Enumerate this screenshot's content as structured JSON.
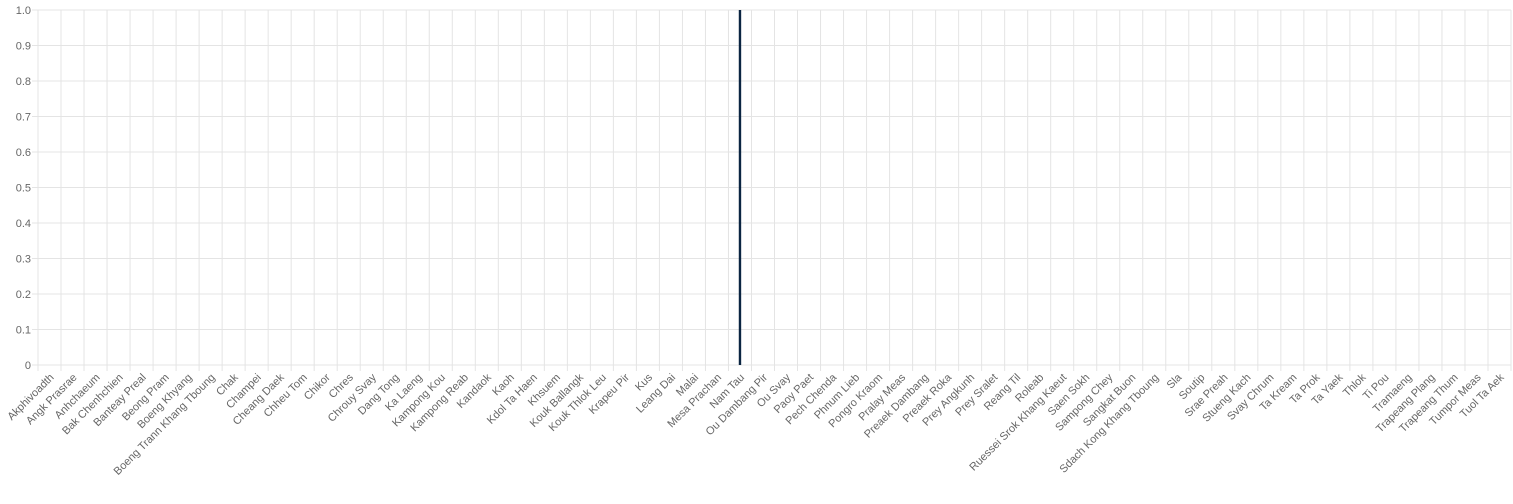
{
  "chart_data": {
    "type": "bar",
    "title": "",
    "xlabel": "",
    "ylabel": "",
    "ylim": [
      0,
      1
    ],
    "yticks": [
      "0",
      "0.1",
      "0.2",
      "0.3",
      "0.4",
      "0.5",
      "0.6",
      "0.7",
      "0.8",
      "0.9",
      "1.0"
    ],
    "grid": true,
    "bar_color": "#0b2542",
    "categories": [
      "Akphivoadth",
      "Angk Prasrae",
      "Anhchaeum",
      "Bak Chenhchien",
      "Banteay Preal",
      "Beong Pram",
      "Boeng Khyang",
      "Boeng Trann Khang Tboung",
      "Chak",
      "Champei",
      "Cheang Daek",
      "Chheu Tom",
      "Chikor",
      "Chres",
      "Chrouy Svay",
      "Dang Tong",
      "Ka Laeng",
      "Kampong Kou",
      "Kampong Reab",
      "Kandaok",
      "Kaoh",
      "Kdol Ta Haen",
      "Khsuem",
      "Kouk Ballangk",
      "Kouk Thlok Leu",
      "Krapeu Pir",
      "Kus",
      "Leang Dai",
      "Malai",
      "Mesa Prachan",
      "Nam Tau",
      "Ou Dambang Pir",
      "Ou Svay",
      "Paoy Paet",
      "Pech Chenda",
      "Phnum Lieb",
      "Pongro Kraom",
      "Pralay Meas",
      "Preaek Dambang",
      "Preaek Roka",
      "Prey Angkunh",
      "Prey Sralet",
      "Reang Til",
      "Roleab",
      "Ruessei Srok Khang Kaeut",
      "Saen Sokh",
      "Sampong Chey",
      "Sangkat Buon",
      "Sdach Kong Khang Tboung",
      "Sla",
      "Soutip",
      "Srae Preah",
      "Stueng Kach",
      "Svay Chrum",
      "Ta Kream",
      "Ta Prok",
      "Ta Yaek",
      "Thlok",
      "Ti Pou",
      "Tramaeng",
      "Trapeang Plang",
      "Trapeang Thum",
      "Tumpor Meas",
      "Tuol Ta Aek"
    ],
    "values": [
      0,
      0,
      0,
      0,
      0,
      0,
      0,
      0,
      0,
      0,
      0,
      0,
      0,
      0,
      0,
      0,
      0,
      0,
      0,
      0,
      0,
      0,
      0,
      0,
      0,
      0,
      0,
      0,
      0,
      0,
      1,
      0,
      0,
      0,
      0,
      0,
      0,
      0,
      0,
      0,
      0,
      0,
      0,
      0,
      0,
      0,
      0,
      0,
      0,
      0,
      0,
      0,
      0,
      0,
      0,
      0,
      0,
      0,
      0,
      0,
      0,
      0,
      0,
      0
    ]
  }
}
